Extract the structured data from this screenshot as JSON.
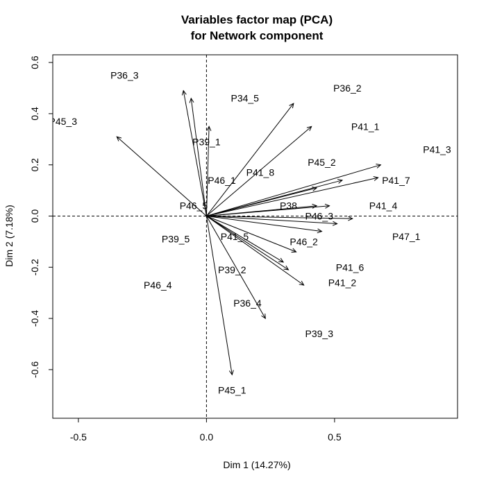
{
  "chart_data": {
    "type": "scatter",
    "title": "Variables factor map (PCA)\nfor Network component",
    "title_lines": [
      "Variables factor map (PCA)",
      "for Network component"
    ],
    "xlabel": "Dim 1 (14.27%)",
    "ylabel": "Dim 2 (7.18%)",
    "xlim": [
      -0.6,
      0.98
    ],
    "ylim": [
      -0.79,
      0.63
    ],
    "xticks": [
      -0.5,
      0.0,
      0.5
    ],
    "xtick_labels": [
      "-0.5",
      "0.0",
      "0.5"
    ],
    "yticks": [
      -0.6,
      -0.4,
      -0.2,
      0.0,
      0.2,
      0.4,
      0.6
    ],
    "ytick_labels": [
      "-0.6",
      "-0.4",
      "-0.2",
      "0.0",
      "0.2",
      "0.4",
      "0.6"
    ],
    "reference_lines": {
      "x": 0,
      "y": 0,
      "style": "dashed"
    },
    "grid": false,
    "arrow_color": "#000000",
    "arrows": [
      {
        "x": -0.35,
        "y": 0.31
      },
      {
        "x": -0.09,
        "y": 0.49
      },
      {
        "x": -0.06,
        "y": 0.46
      },
      {
        "x": 0.01,
        "y": 0.35
      },
      {
        "x": 0.34,
        "y": 0.44
      },
      {
        "x": 0.41,
        "y": 0.35
      },
      {
        "x": 0.68,
        "y": 0.2
      },
      {
        "x": 0.67,
        "y": 0.15
      },
      {
        "x": 0.53,
        "y": 0.14
      },
      {
        "x": 0.43,
        "y": 0.11
      },
      {
        "x": 0.48,
        "y": 0.04
      },
      {
        "x": 0.43,
        "y": 0.04
      },
      {
        "x": 0.57,
        "y": -0.01
      },
      {
        "x": 0.51,
        "y": -0.03
      },
      {
        "x": 0.45,
        "y": -0.06
      },
      {
        "x": 0.35,
        "y": -0.14
      },
      {
        "x": 0.3,
        "y": -0.18
      },
      {
        "x": 0.32,
        "y": -0.21
      },
      {
        "x": 0.38,
        "y": -0.27
      },
      {
        "x": 0.23,
        "y": -0.4
      },
      {
        "x": 0.1,
        "y": -0.62
      }
    ],
    "labels": [
      {
        "text": "P36_3",
        "x": -0.32,
        "y": 0.55
      },
      {
        "text": "P45_3",
        "x": -0.56,
        "y": 0.37
      },
      {
        "text": "P34_5",
        "x": 0.15,
        "y": 0.46
      },
      {
        "text": "P36_2",
        "x": 0.55,
        "y": 0.5
      },
      {
        "text": "P39_1",
        "x": 0.0,
        "y": 0.29
      },
      {
        "text": "P41_1",
        "x": 0.62,
        "y": 0.35
      },
      {
        "text": "P41_3",
        "x": 0.9,
        "y": 0.26
      },
      {
        "text": "P45_2",
        "x": 0.45,
        "y": 0.21
      },
      {
        "text": "P41_8",
        "x": 0.21,
        "y": 0.17
      },
      {
        "text": "P46_1",
        "x": 0.06,
        "y": 0.14
      },
      {
        "text": "P41_7",
        "x": 0.74,
        "y": 0.14
      },
      {
        "text": "P46_5",
        "x": -0.05,
        "y": 0.04
      },
      {
        "text": "P38",
        "x": 0.32,
        "y": 0.04
      },
      {
        "text": "P41_4",
        "x": 0.69,
        "y": 0.04
      },
      {
        "text": "P46_3",
        "x": 0.44,
        "y": 0.0
      },
      {
        "text": "P47_1",
        "x": 0.78,
        "y": -0.08
      },
      {
        "text": "P39_5",
        "x": -0.12,
        "y": -0.09
      },
      {
        "text": "P41_5",
        "x": 0.11,
        "y": -0.08
      },
      {
        "text": "P46_2",
        "x": 0.38,
        "y": -0.1
      },
      {
        "text": "P41_6",
        "x": 0.56,
        "y": -0.2
      },
      {
        "text": "P39_2",
        "x": 0.1,
        "y": -0.21
      },
      {
        "text": "P41_2",
        "x": 0.53,
        "y": -0.26
      },
      {
        "text": "P46_4",
        "x": -0.19,
        "y": -0.27
      },
      {
        "text": "P36_4",
        "x": 0.16,
        "y": -0.34
      },
      {
        "text": "P39_3",
        "x": 0.44,
        "y": -0.46
      },
      {
        "text": "P45_1",
        "x": 0.1,
        "y": -0.68
      }
    ]
  }
}
